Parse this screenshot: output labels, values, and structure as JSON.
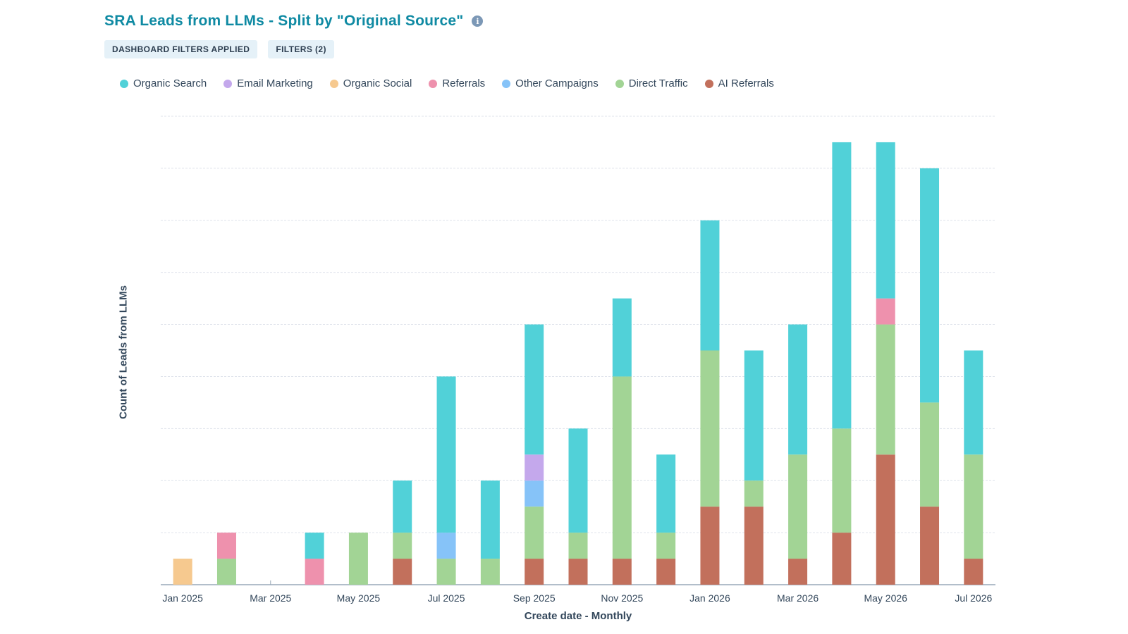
{
  "header": {
    "title": "SRA Leads from LLMs - Split by \"Original Source\"",
    "info_icon": "info-icon",
    "chips": [
      "DASHBOARD FILTERS APPLIED",
      "FILTERS (2)"
    ]
  },
  "colors": {
    "Organic Search": "#51d1d8",
    "Email Marketing": "#c4a8ec",
    "Organic Social": "#f6c98f",
    "Referrals": "#ee91ad",
    "Other Campaigns": "#86c3f8",
    "Direct Traffic": "#a2d495",
    "AI Referrals": "#c2705c"
  },
  "chart_data": {
    "type": "bar",
    "stacked": true,
    "title": "SRA Leads from LLMs - Split by \"Original Source\"",
    "xlabel": "Create date - Monthly",
    "ylabel": "Count of Leads from LLMs",
    "ylim": [
      0,
      18
    ],
    "grid": true,
    "legend_position": "top-left",
    "categories": [
      "Jan 2025",
      "Feb 2025",
      "Mar 2025",
      "Apr 2025",
      "May 2025",
      "Jun 2025",
      "Jul 2025",
      "Aug 2025",
      "Sep 2025",
      "Oct 2025",
      "Nov 2025",
      "Dec 2025",
      "Jan 2026",
      "Feb 2026",
      "Mar 2026",
      "Apr 2026",
      "May 2026",
      "Jun 2026",
      "Jul 2026"
    ],
    "tick_labels": [
      "Jan 2025",
      "",
      "Mar 2025",
      "",
      "May 2025",
      "",
      "Jul 2025",
      "",
      "Sep 2025",
      "",
      "Nov 2025",
      "",
      "Jan 2026",
      "",
      "Mar 2026",
      "",
      "May 2026",
      "",
      "Jul 2026"
    ],
    "series": [
      {
        "name": "AI Referrals",
        "values": [
          0,
          0,
          0,
          0,
          0,
          1,
          0,
          0,
          1,
          1,
          1,
          1,
          3,
          3,
          1,
          2,
          5,
          3,
          1
        ]
      },
      {
        "name": "Direct Traffic",
        "values": [
          0,
          1,
          0,
          0,
          2,
          1,
          1,
          1,
          2,
          1,
          7,
          1,
          6,
          1,
          4,
          4,
          5,
          4,
          4
        ]
      },
      {
        "name": "Organic Social",
        "values": [
          1,
          0,
          0,
          0,
          0,
          0,
          0,
          0,
          0,
          0,
          0,
          0,
          0,
          0,
          0,
          0,
          0,
          0,
          0
        ]
      },
      {
        "name": "Referrals",
        "values": [
          0,
          1,
          0,
          1,
          0,
          0,
          0,
          0,
          0,
          0,
          0,
          0,
          0,
          0,
          0,
          0,
          1,
          0,
          0
        ]
      },
      {
        "name": "Other Campaigns",
        "values": [
          0,
          0,
          0,
          0,
          0,
          0,
          1,
          0,
          1,
          0,
          0,
          0,
          0,
          0,
          0,
          0,
          0,
          0,
          0
        ]
      },
      {
        "name": "Email Marketing",
        "values": [
          0,
          0,
          0,
          0,
          0,
          0,
          0,
          0,
          1,
          0,
          0,
          0,
          0,
          0,
          0,
          0,
          0,
          0,
          0
        ]
      },
      {
        "name": "Organic Search",
        "values": [
          0,
          0,
          0,
          1,
          0,
          2,
          6,
          3,
          5,
          4,
          3,
          3,
          5,
          5,
          5,
          11,
          6,
          9,
          4
        ]
      }
    ],
    "legend_order": [
      "Organic Search",
      "Email Marketing",
      "Organic Social",
      "Referrals",
      "Other Campaigns",
      "Direct Traffic",
      "AI Referrals"
    ]
  }
}
